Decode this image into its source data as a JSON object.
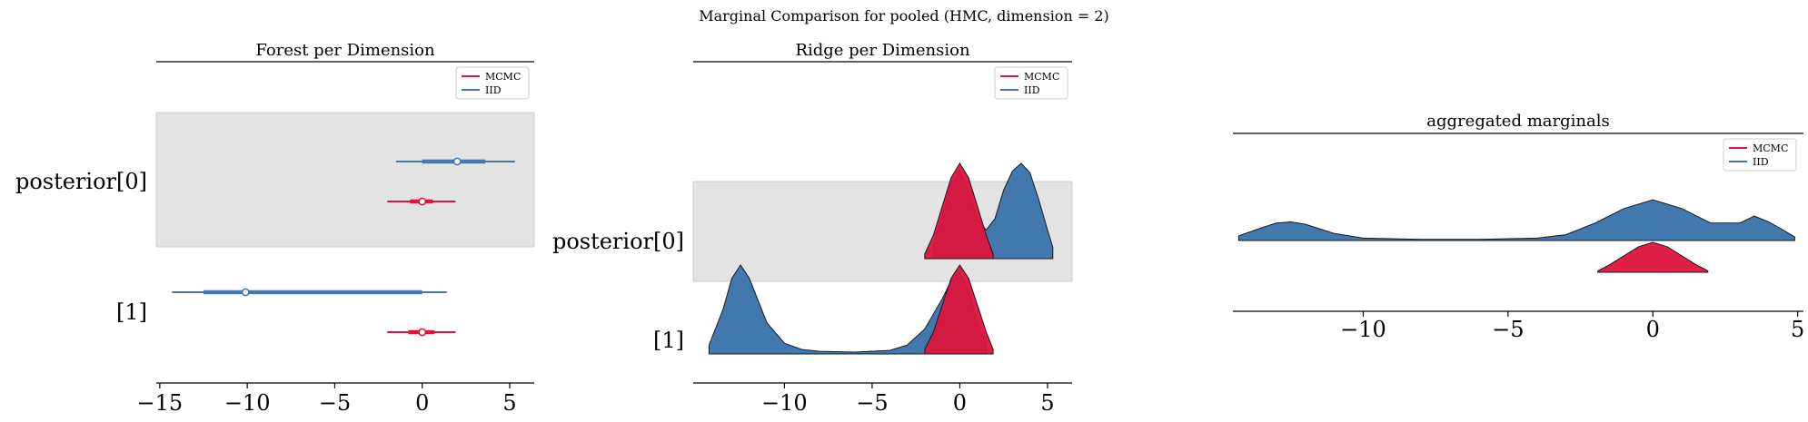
{
  "suptitle": "Marginal Comparison for pooled (HMC, dimension = 2)",
  "colors": {
    "mcmc": "#dc143c",
    "iid": "#4178ad",
    "shade": "#e3e3e3",
    "shade_edge": "#cccccc"
  },
  "legend": {
    "mcmc_label": "MCMC",
    "iid_label": "IID"
  },
  "chart_data": [
    {
      "type": "forest",
      "title": "Forest per Dimension",
      "row_labels": [
        "posterior[0]",
        "[1]"
      ],
      "xlim": [
        -15.2,
        6.4
      ],
      "xticks": [
        -15,
        -10,
        -5,
        0,
        5
      ],
      "xtick_labels": [
        "−15",
        "−10",
        "−5",
        "0",
        "5"
      ],
      "legend_loc": "top-right",
      "series": [
        {
          "name": "MCMC",
          "rows": [
            {
              "hdi94": [
                -2.0,
                1.9
              ],
              "iqr": [
                -0.7,
                0.6
              ],
              "median": 0.0
            },
            {
              "hdi94": [
                -2.0,
                1.9
              ],
              "iqr": [
                -0.8,
                0.7
              ],
              "median": 0.0
            }
          ]
        },
        {
          "name": "IID",
          "rows": [
            {
              "hdi94": [
                -1.5,
                5.3
              ],
              "iqr": [
                0.0,
                3.6
              ],
              "median": 2.0
            },
            {
              "hdi94": [
                -14.3,
                1.4
              ],
              "iqr": [
                -12.5,
                0.0
              ],
              "median": -10.1
            }
          ]
        }
      ]
    },
    {
      "type": "ridge",
      "title": "Ridge per Dimension",
      "row_labels": [
        "posterior[0]",
        "[1]"
      ],
      "xlim": [
        -15.2,
        6.4
      ],
      "xticks": [
        -10,
        -5,
        0,
        5
      ],
      "xtick_labels": [
        "−10",
        "−5",
        "0",
        "5"
      ],
      "legend_loc": "top-right",
      "series": [
        {
          "name": "IID",
          "rows": [
            {
              "x": [
                -1.5,
                -1.0,
                -0.5,
                0.0,
                0.5,
                1.0,
                1.5,
                2.0,
                2.5,
                3.0,
                3.5,
                4.0,
                4.5,
                5.0,
                5.3
              ],
              "density": [
                0.15,
                0.45,
                0.78,
                0.92,
                0.7,
                0.42,
                0.3,
                0.42,
                0.72,
                0.92,
                1.0,
                0.9,
                0.62,
                0.3,
                0.12
              ]
            },
            {
              "x": [
                -14.3,
                -13.5,
                -13.0,
                -12.5,
                -12.0,
                -11.0,
                -10.0,
                -9.0,
                -8.0,
                -6.0,
                -4.0,
                -3.0,
                -2.0,
                -1.0,
                -0.5,
                0.0,
                0.5,
                1.0,
                1.5
              ],
              "density": [
                0.1,
                0.5,
                0.85,
                1.0,
                0.85,
                0.35,
                0.12,
                0.05,
                0.03,
                0.02,
                0.04,
                0.1,
                0.28,
                0.62,
                0.82,
                0.92,
                0.72,
                0.35,
                0.12
              ]
            }
          ]
        },
        {
          "name": "MCMC",
          "rows": [
            {
              "x": [
                -2.0,
                -1.5,
                -1.0,
                -0.5,
                0.0,
                0.5,
                1.0,
                1.5,
                1.9
              ],
              "density": [
                0.05,
                0.25,
                0.55,
                0.85,
                1.0,
                0.85,
                0.55,
                0.25,
                0.05
              ]
            },
            {
              "x": [
                -2.0,
                -1.5,
                -1.0,
                -0.5,
                0.0,
                0.5,
                1.0,
                1.5,
                1.9
              ],
              "density": [
                0.05,
                0.25,
                0.55,
                0.85,
                1.0,
                0.85,
                0.55,
                0.25,
                0.05
              ]
            }
          ]
        }
      ]
    },
    {
      "type": "ridge",
      "title": "aggregated marginals",
      "xlim": [
        -14.5,
        5.2
      ],
      "xticks": [
        -10,
        -5,
        0,
        5
      ],
      "xtick_labels": [
        "−10",
        "−5",
        "0",
        "5"
      ],
      "legend_loc": "top-right",
      "series": [
        {
          "name": "IID",
          "x": [
            -14.3,
            -13.5,
            -13.0,
            -12.5,
            -12.0,
            -11.0,
            -10.0,
            -8.0,
            -6.0,
            -4.0,
            -3.0,
            -2.0,
            -1.0,
            0.0,
            1.0,
            2.0,
            3.0,
            3.5,
            4.0,
            4.5,
            4.9
          ],
          "density": [
            0.08,
            0.22,
            0.3,
            0.32,
            0.28,
            0.12,
            0.04,
            0.02,
            0.02,
            0.04,
            0.1,
            0.3,
            0.55,
            0.7,
            0.55,
            0.3,
            0.3,
            0.42,
            0.32,
            0.18,
            0.06
          ]
        },
        {
          "name": "MCMC",
          "x": [
            -1.9,
            -1.5,
            -1.0,
            -0.5,
            0.0,
            0.5,
            1.0,
            1.5,
            1.9
          ],
          "density": [
            0.05,
            0.25,
            0.55,
            0.85,
            1.0,
            0.85,
            0.55,
            0.25,
            0.05
          ]
        }
      ]
    }
  ]
}
